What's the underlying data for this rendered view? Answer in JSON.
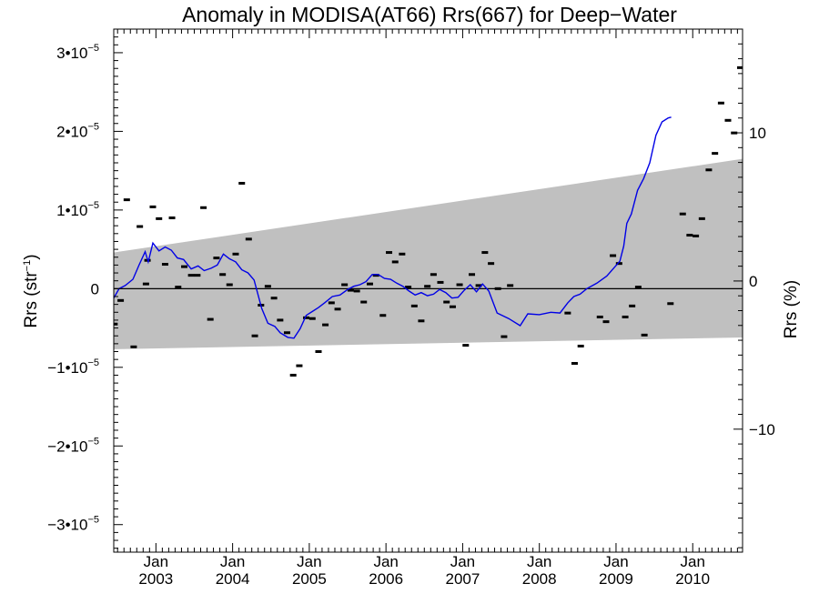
{
  "chart_data": {
    "type": "scatter",
    "title": "Anomaly in MODISA(AT66) Rrs(667) for Deep−Water",
    "ylabel_left": {
      "main": "Rrs (str",
      "sup": "−1",
      "close": ")"
    },
    "ylabel_right": "Rrs (%)",
    "x_range": [
      2002.45,
      2010.65
    ],
    "y_left_range": [
      -3.35e-05,
      3.3e-05
    ],
    "y_right_range": [
      -18.3,
      17.0
    ],
    "x_ticks": [
      {
        "x": 2003.0,
        "top": "Jan",
        "bottom": "2003"
      },
      {
        "x": 2004.0,
        "top": "Jan",
        "bottom": "2004"
      },
      {
        "x": 2005.0,
        "top": "Jan",
        "bottom": "2005"
      },
      {
        "x": 2006.0,
        "top": "Jan",
        "bottom": "2006"
      },
      {
        "x": 2007.0,
        "top": "Jan",
        "bottom": "2007"
      },
      {
        "x": 2008.0,
        "top": "Jan",
        "bottom": "2008"
      },
      {
        "x": 2009.0,
        "top": "Jan",
        "bottom": "2009"
      },
      {
        "x": 2010.0,
        "top": "Jan",
        "bottom": "2010"
      }
    ],
    "y_left_ticks": [
      {
        "v": 3e-05,
        "mant": "3•10",
        "exp": "−5"
      },
      {
        "v": 2e-05,
        "mant": "2•10",
        "exp": "−5"
      },
      {
        "v": 1e-05,
        "mant": "1•10",
        "exp": "−5"
      },
      {
        "v": 0,
        "mant": "0",
        "exp": ""
      },
      {
        "v": -1e-05,
        "mant": "−1•10",
        "exp": "−5"
      },
      {
        "v": -2e-05,
        "mant": "−2•10",
        "exp": "−5"
      },
      {
        "v": -3e-05,
        "mant": "−3•10",
        "exp": "−5"
      }
    ],
    "y_right_ticks": [
      {
        "v": 10,
        "label": "10"
      },
      {
        "v": 0,
        "label": "0"
      },
      {
        "v": -10,
        "label": "−10"
      }
    ],
    "band": {
      "upper": [
        [
          2002.45,
          4.6e-06
        ],
        [
          2010.65,
          1.65e-05
        ]
      ],
      "lower": [
        [
          2002.45,
          -7.7e-06
        ],
        [
          2010.65,
          -6.2e-06
        ]
      ],
      "color": "#c0c0c0"
    },
    "zero_line": true,
    "points": [
      [
        2002.46,
        -4.5e-06
      ],
      [
        2002.54,
        -1.5e-06
      ],
      [
        2002.62,
        1.13e-05
      ],
      [
        2002.71,
        -7.4e-06
      ],
      [
        2002.79,
        7.9e-06
      ],
      [
        2002.87,
        6e-07
      ],
      [
        2002.89,
        3.6e-06
      ],
      [
        2002.96,
        1.04e-05
      ],
      [
        2003.04,
        8.9e-06
      ],
      [
        2003.12,
        3.1e-06
      ],
      [
        2003.21,
        9e-06
      ],
      [
        2003.29,
        2e-07
      ],
      [
        2003.37,
        2.8e-06
      ],
      [
        2003.46,
        1.7e-06
      ],
      [
        2003.54,
        1.7e-06
      ],
      [
        2003.62,
        1.03e-05
      ],
      [
        2003.71,
        -3.9e-06
      ],
      [
        2003.79,
        3.9e-06
      ],
      [
        2003.87,
        1.8e-06
      ],
      [
        2003.96,
        5e-07
      ],
      [
        2004.04,
        4.4e-06
      ],
      [
        2004.12,
        1.34e-05
      ],
      [
        2004.21,
        6.3e-06
      ],
      [
        2004.29,
        -6e-06
      ],
      [
        2004.37,
        -2.1e-06
      ],
      [
        2004.46,
        3e-07
      ],
      [
        2004.54,
        -1.2e-06
      ],
      [
        2004.62,
        -4e-06
      ],
      [
        2004.71,
        -5.6e-06
      ],
      [
        2004.79,
        -1.1e-05
      ],
      [
        2004.87,
        -9.8e-06
      ],
      [
        2004.96,
        -3.7e-06
      ],
      [
        2005.04,
        -3.8e-06
      ],
      [
        2005.12,
        -8e-06
      ],
      [
        2005.21,
        -4.6e-06
      ],
      [
        2005.29,
        -1.8e-06
      ],
      [
        2005.37,
        -2.6e-06
      ],
      [
        2005.46,
        5e-07
      ],
      [
        2005.54,
        -2e-07
      ],
      [
        2005.62,
        -3e-07
      ],
      [
        2005.71,
        -1.7e-06
      ],
      [
        2005.79,
        6e-07
      ],
      [
        2005.87,
        1.7e-06
      ],
      [
        2005.96,
        -3.4e-06
      ],
      [
        2006.04,
        4.6e-06
      ],
      [
        2006.12,
        3.4e-06
      ],
      [
        2006.21,
        4.4e-06
      ],
      [
        2006.29,
        2e-07
      ],
      [
        2006.37,
        -2.2e-06
      ],
      [
        2006.46,
        -4.1e-06
      ],
      [
        2006.54,
        3e-07
      ],
      [
        2006.62,
        1.8e-06
      ],
      [
        2006.71,
        8e-07
      ],
      [
        2006.79,
        -1.7e-06
      ],
      [
        2006.87,
        -2.3e-06
      ],
      [
        2006.96,
        5e-07
      ],
      [
        2007.04,
        -7.2e-06
      ],
      [
        2007.12,
        1.8e-06
      ],
      [
        2007.21,
        4e-07
      ],
      [
        2007.29,
        4.6e-06
      ],
      [
        2007.37,
        3.2e-06
      ],
      [
        2007.46,
        0
      ],
      [
        2007.54,
        -6.1e-06
      ],
      [
        2007.62,
        4e-07
      ],
      [
        2008.37,
        -3.1e-06
      ],
      [
        2008.46,
        -9.5e-06
      ],
      [
        2008.54,
        -7.3e-06
      ],
      [
        2008.79,
        -3.6e-06
      ],
      [
        2008.87,
        -4.2e-06
      ],
      [
        2008.96,
        4.2e-06
      ],
      [
        2009.04,
        3.2e-06
      ],
      [
        2009.12,
        -3.6e-06
      ],
      [
        2009.21,
        -2.2e-06
      ],
      [
        2009.29,
        2e-07
      ],
      [
        2009.37,
        -5.9e-06
      ],
      [
        2009.71,
        -1.9e-06
      ],
      [
        2009.87,
        9.5e-06
      ],
      [
        2009.96,
        6.8e-06
      ],
      [
        2010.04,
        6.7e-06
      ],
      [
        2010.12,
        8.9e-06
      ],
      [
        2010.21,
        1.51e-05
      ],
      [
        2010.29,
        1.72e-05
      ],
      [
        2010.37,
        2.36e-05
      ],
      [
        2010.46,
        2.14e-05
      ],
      [
        2010.54,
        1.98e-05
      ],
      [
        2010.62,
        2.81e-05
      ]
    ],
    "line": [
      [
        2002.45,
        -1.2e-06
      ],
      [
        2002.52,
        0
      ],
      [
        2002.6,
        4e-07
      ],
      [
        2002.7,
        1.2e-06
      ],
      [
        2002.78,
        3e-06
      ],
      [
        2002.86,
        4.7e-06
      ],
      [
        2002.9,
        3.4e-06
      ],
      [
        2002.96,
        5.8e-06
      ],
      [
        2003.04,
        4.8e-06
      ],
      [
        2003.12,
        5.3e-06
      ],
      [
        2003.2,
        4.9e-06
      ],
      [
        2003.28,
        3.9e-06
      ],
      [
        2003.36,
        3.7e-06
      ],
      [
        2003.46,
        2.5e-06
      ],
      [
        2003.55,
        2.9e-06
      ],
      [
        2003.63,
        2.3e-06
      ],
      [
        2003.72,
        2.6e-06
      ],
      [
        2003.8,
        3e-06
      ],
      [
        2003.88,
        4.4e-06
      ],
      [
        2003.96,
        3.8e-06
      ],
      [
        2004.04,
        3.4e-06
      ],
      [
        2004.12,
        2.4e-06
      ],
      [
        2004.2,
        2e-06
      ],
      [
        2004.28,
        1.1e-06
      ],
      [
        2004.38,
        -2.5e-06
      ],
      [
        2004.46,
        -4.4e-06
      ],
      [
        2004.55,
        -4.8e-06
      ],
      [
        2004.62,
        -5.6e-06
      ],
      [
        2004.72,
        -6.2e-06
      ],
      [
        2004.8,
        -6.3e-06
      ],
      [
        2004.88,
        -5.1e-06
      ],
      [
        2004.96,
        -3.4e-06
      ],
      [
        2005.04,
        -2.9e-06
      ],
      [
        2005.12,
        -2.4e-06
      ],
      [
        2005.2,
        -1.8e-06
      ],
      [
        2005.3,
        -1e-06
      ],
      [
        2005.4,
        -8e-07
      ],
      [
        2005.5,
        -1e-07
      ],
      [
        2005.58,
        3e-07
      ],
      [
        2005.66,
        5e-07
      ],
      [
        2005.74,
        9e-07
      ],
      [
        2005.82,
        1.8e-06
      ],
      [
        2005.9,
        1.8e-06
      ],
      [
        2005.98,
        1.3e-06
      ],
      [
        2006.06,
        1.2e-06
      ],
      [
        2006.14,
        7e-07
      ],
      [
        2006.22,
        3e-07
      ],
      [
        2006.3,
        -3e-07
      ],
      [
        2006.38,
        -8e-07
      ],
      [
        2006.46,
        -5e-07
      ],
      [
        2006.54,
        -9e-07
      ],
      [
        2006.62,
        -7e-07
      ],
      [
        2006.7,
        -1e-07
      ],
      [
        2006.78,
        -5e-07
      ],
      [
        2006.86,
        -1.2e-06
      ],
      [
        2006.94,
        -1.1e-06
      ],
      [
        2007.02,
        -2e-07
      ],
      [
        2007.1,
        5e-07
      ],
      [
        2007.18,
        -4e-07
      ],
      [
        2007.26,
        6e-07
      ],
      [
        2007.34,
        -3e-07
      ],
      [
        2007.45,
        -3.1e-06
      ],
      [
        2007.6,
        -3.8e-06
      ],
      [
        2007.75,
        -4.7e-06
      ],
      [
        2007.85,
        -3.2e-06
      ],
      [
        2008.0,
        -3.3e-06
      ],
      [
        2008.15,
        -3e-06
      ],
      [
        2008.27,
        -3.1e-06
      ],
      [
        2008.37,
        -1.8e-06
      ],
      [
        2008.45,
        -1e-06
      ],
      [
        2008.53,
        -7e-07
      ],
      [
        2008.62,
        0
      ],
      [
        2008.75,
        7e-07
      ],
      [
        2008.88,
        1.6e-06
      ],
      [
        2009.05,
        3.5e-06
      ],
      [
        2009.1,
        5.4e-06
      ],
      [
        2009.14,
        8.3e-06
      ],
      [
        2009.2,
        9.5e-06
      ],
      [
        2009.28,
        1.25e-05
      ],
      [
        2009.36,
        1.4e-05
      ],
      [
        2009.44,
        1.6e-05
      ],
      [
        2009.52,
        1.95e-05
      ],
      [
        2009.6,
        2.12e-05
      ],
      [
        2009.68,
        2.17e-05
      ],
      [
        2009.72,
        2.18e-05
      ]
    ],
    "line_color": "#0000e6",
    "grid": false,
    "legend": "none"
  }
}
